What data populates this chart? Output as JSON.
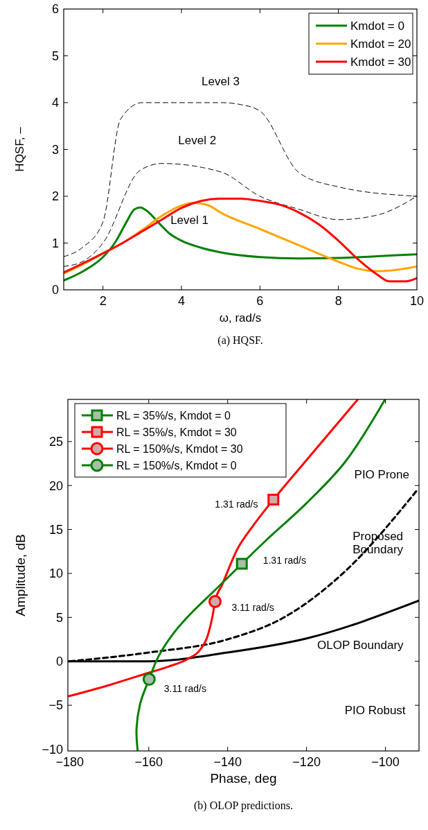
{
  "chart_data": [
    {
      "type": "line",
      "title": "(a) HQSF.",
      "xlabel": "ω, rad/s",
      "ylabel": "HQSF, –",
      "xlim": [
        1,
        10
      ],
      "ylim": [
        0,
        6
      ],
      "xticks": [
        2,
        4,
        6,
        8,
        10
      ],
      "yticks": [
        0,
        1,
        2,
        3,
        4,
        5,
        6
      ],
      "legend": "top right",
      "grid": false,
      "series": [
        {
          "color": "#000000",
          "line_style": "dashed",
          "x": [
            1,
            1.47,
            2,
            2.45,
            3,
            5,
            5.5,
            6,
            7,
            8,
            10
          ],
          "values": [
            0.71,
            0.9,
            1.45,
            3.65,
            4.0,
            4.0,
            3.96,
            3.82,
            2.5,
            2.2,
            2.0
          ]
        },
        {
          "color": "#000000",
          "line_style": "dashed",
          "x": [
            1,
            1.47,
            2,
            2.94,
            3.5,
            5,
            6,
            7,
            8,
            9,
            10
          ],
          "values": [
            0.5,
            0.6,
            1.0,
            2.55,
            2.7,
            2.52,
            2.0,
            1.72,
            1.5,
            1.6,
            2.0
          ]
        },
        {
          "name": "Kmdot = 0",
          "color": "#008000",
          "x": [
            1,
            1.5,
            2,
            2.3,
            2.6,
            2.8,
            2.95,
            3.1,
            3.4,
            3.7,
            4,
            4.5,
            5,
            6,
            7,
            8,
            9,
            10
          ],
          "values": [
            0.2,
            0.4,
            0.7,
            1.0,
            1.45,
            1.72,
            1.76,
            1.7,
            1.45,
            1.2,
            1.05,
            0.9,
            0.8,
            0.7,
            0.67,
            0.68,
            0.72,
            0.76
          ]
        },
        {
          "name": "Kmdot = 20",
          "color": "#ffa500",
          "x": [
            1,
            1.5,
            2,
            2.5,
            3,
            3.5,
            4,
            4.3,
            4.7,
            5,
            6,
            7,
            8,
            8.5,
            9,
            9.5,
            10
          ],
          "values": [
            0.35,
            0.55,
            0.78,
            1.0,
            1.28,
            1.58,
            1.8,
            1.86,
            1.8,
            1.65,
            1.3,
            0.95,
            0.6,
            0.45,
            0.4,
            0.43,
            0.5
          ]
        },
        {
          "name": "Kmdot = 30",
          "color": "#ff0000",
          "x": [
            1,
            1.5,
            2,
            2.5,
            3,
            3.5,
            4,
            4.5,
            5,
            5.5,
            6,
            6.5,
            7,
            7.5,
            8,
            8.5,
            9,
            9.3,
            9.7,
            10
          ],
          "values": [
            0.37,
            0.57,
            0.78,
            1.0,
            1.25,
            1.5,
            1.75,
            1.9,
            1.95,
            1.95,
            1.9,
            1.82,
            1.65,
            1.4,
            1.05,
            0.65,
            0.32,
            0.18,
            0.18,
            0.25
          ]
        }
      ],
      "annotations": [
        "Level 3",
        "Level 2",
        "Level 1"
      ]
    },
    {
      "type": "line",
      "title": "(b) OLOP predictions.",
      "xlabel": "Phase, deg",
      "ylabel": "Amplitude, dB",
      "xlim": [
        -180.5,
        -91.5
      ],
      "ylim": [
        -10.2,
        29.8
      ],
      "xticks": [
        {
          "value": -180,
          "label": "−180"
        },
        {
          "value": -160,
          "label": "−160"
        },
        {
          "value": -140,
          "label": "−140"
        },
        {
          "value": -120,
          "label": "−120"
        },
        {
          "value": -100,
          "label": "−100"
        }
      ],
      "yticks": [
        {
          "value": -10,
          "label": "−10"
        },
        {
          "value": -5,
          "label": "−5"
        },
        0,
        5,
        10,
        15,
        20,
        25
      ],
      "legend": "top left",
      "grid": false,
      "series": [
        {
          "color": "#000000",
          "x": [
            -180.5,
            -160,
            -140,
            -120,
            -91.5
          ],
          "values": [
            0,
            0,
            1.0,
            2.6,
            6.9
          ]
        },
        {
          "color": "#000000",
          "line_style": "dashed",
          "x": [
            -180,
            -160,
            -140,
            -125.5,
            -110.8,
            -92.1
          ],
          "values": [
            0,
            1.0,
            2.5,
            5.05,
            10.0,
            19.4
          ]
        },
        {
          "color": "#ff0000",
          "x": [
            -180.5,
            -170,
            -160,
            -155,
            -150,
            -147,
            -145,
            -143.8,
            -143.2,
            -141.4,
            -137.5,
            -133.6,
            -128.4,
            -120,
            -107
          ],
          "values": [
            -4.0,
            -2.7,
            -1.3,
            -0.6,
            0.3,
            1.3,
            3.0,
            5.2,
            6.8,
            8.7,
            12.8,
            15.4,
            18.4,
            22.9,
            29.8
          ]
        },
        {
          "color": "#008000",
          "x": [
            -162.8,
            -163.1,
            -162.1,
            -159.9,
            -157.6,
            -153.7,
            -149.2,
            -143.2,
            -136.4,
            -129.7,
            -120,
            -110.2,
            -100.1
          ],
          "values": [
            -10.2,
            -7.65,
            -4.7,
            -2.04,
            0.5,
            3.2,
            5.5,
            8.1,
            11.1,
            14.0,
            18.0,
            22.7,
            29.8
          ]
        },
        {
          "type": "scatter",
          "name": "RL = 35%/s, Kmdot = 0",
          "color": "#008000",
          "marker": "square",
          "x": [
            -136.4
          ],
          "values": [
            11.1
          ]
        },
        {
          "type": "scatter",
          "name": "RL = 35%/s, Kmdot = 30",
          "color": "#ff0000",
          "marker": "square",
          "x": [
            -128.4
          ],
          "values": [
            18.4
          ]
        },
        {
          "type": "scatter",
          "name": "RL = 150%/s, Kmdot = 30",
          "color": "#ff0000",
          "marker": "circle",
          "x": [
            -143.2
          ],
          "values": [
            6.8
          ]
        },
        {
          "type": "scatter",
          "name": "RL = 150%/s, Kmdot = 0",
          "color": "#008000",
          "marker": "circle",
          "x": [
            -159.9
          ],
          "values": [
            -2.04
          ]
        }
      ],
      "annotations": [
        "1.31 rad/s",
        "1.31 rad/s",
        "3.11 rad/s",
        "3.11 rad/s",
        "PIO Prone",
        "Proposed\nBoundary",
        "OLOP Boundary",
        "PIO Robust"
      ]
    }
  ]
}
